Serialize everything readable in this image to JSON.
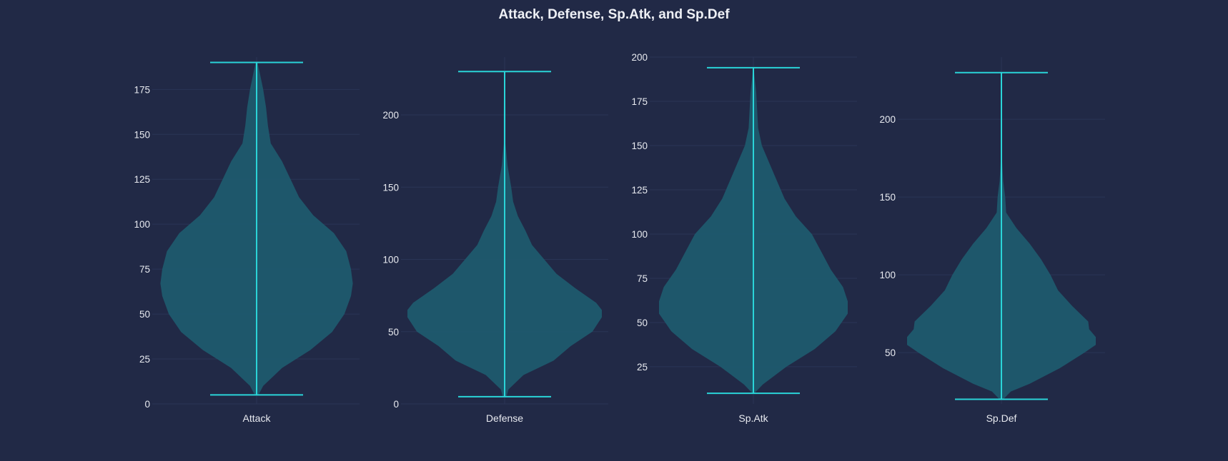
{
  "chart_data": {
    "type": "violin",
    "title": "Attack, Defense, Sp.Atk, and Sp.Def",
    "panels": [
      {
        "category": "Attack",
        "min": 5,
        "max": 190,
        "ylim": [
          0,
          193
        ],
        "yticks": [
          0,
          25,
          50,
          75,
          100,
          125,
          150,
          175
        ],
        "density": [
          [
            5,
            0.02
          ],
          [
            10,
            0.07
          ],
          [
            20,
            0.27
          ],
          [
            30,
            0.57
          ],
          [
            40,
            0.8
          ],
          [
            50,
            0.93
          ],
          [
            60,
            1.0
          ],
          [
            67,
            1.02
          ],
          [
            75,
            1.0
          ],
          [
            85,
            0.95
          ],
          [
            95,
            0.82
          ],
          [
            105,
            0.6
          ],
          [
            115,
            0.45
          ],
          [
            125,
            0.36
          ],
          [
            135,
            0.27
          ],
          [
            145,
            0.15
          ],
          [
            155,
            0.12
          ],
          [
            165,
            0.1
          ],
          [
            175,
            0.07
          ],
          [
            185,
            0.03
          ],
          [
            190,
            0.01
          ]
        ]
      },
      {
        "category": "Defense",
        "min": 5,
        "max": 230,
        "ylim": [
          0,
          240
        ],
        "yticks": [
          0,
          50,
          100,
          150,
          200
        ],
        "density": [
          [
            5,
            0.02
          ],
          [
            10,
            0.04
          ],
          [
            20,
            0.2
          ],
          [
            30,
            0.52
          ],
          [
            40,
            0.7
          ],
          [
            50,
            0.93
          ],
          [
            60,
            1.03
          ],
          [
            65,
            1.03
          ],
          [
            70,
            0.97
          ],
          [
            80,
            0.75
          ],
          [
            90,
            0.55
          ],
          [
            100,
            0.42
          ],
          [
            110,
            0.29
          ],
          [
            120,
            0.22
          ],
          [
            130,
            0.14
          ],
          [
            140,
            0.09
          ],
          [
            150,
            0.07
          ],
          [
            165,
            0.03
          ],
          [
            180,
            0.01
          ],
          [
            200,
            0.01
          ],
          [
            230,
            0.005
          ]
        ]
      },
      {
        "category": "Sp.Atk",
        "min": 10,
        "max": 194,
        "ylim": [
          4,
          200
        ],
        "yticks": [
          25,
          50,
          75,
          100,
          125,
          150,
          175,
          200
        ],
        "density": [
          [
            10,
            0.01
          ],
          [
            15,
            0.1
          ],
          [
            25,
            0.35
          ],
          [
            35,
            0.65
          ],
          [
            45,
            0.87
          ],
          [
            55,
            1.0
          ],
          [
            62,
            1.0
          ],
          [
            70,
            0.95
          ],
          [
            80,
            0.82
          ],
          [
            90,
            0.72
          ],
          [
            100,
            0.62
          ],
          [
            110,
            0.45
          ],
          [
            120,
            0.33
          ],
          [
            130,
            0.25
          ],
          [
            140,
            0.17
          ],
          [
            150,
            0.09
          ],
          [
            160,
            0.05
          ],
          [
            170,
            0.04
          ],
          [
            180,
            0.03
          ],
          [
            190,
            0.01
          ],
          [
            194,
            0.005
          ]
        ]
      },
      {
        "category": "Sp.Def",
        "min": 20,
        "max": 230,
        "ylim": [
          17,
          240
        ],
        "yticks": [
          50,
          100,
          150,
          200
        ],
        "density": [
          [
            20,
            0.02
          ],
          [
            25,
            0.1
          ],
          [
            30,
            0.3
          ],
          [
            40,
            0.62
          ],
          [
            50,
            0.88
          ],
          [
            55,
            1.0
          ],
          [
            60,
            1.0
          ],
          [
            65,
            0.93
          ],
          [
            70,
            0.92
          ],
          [
            80,
            0.75
          ],
          [
            90,
            0.6
          ],
          [
            100,
            0.52
          ],
          [
            110,
            0.42
          ],
          [
            120,
            0.3
          ],
          [
            130,
            0.16
          ],
          [
            140,
            0.05
          ],
          [
            150,
            0.04
          ],
          [
            160,
            0.02
          ],
          [
            170,
            0.01
          ],
          [
            180,
            0.003
          ],
          [
            230,
            0.002
          ]
        ]
      }
    ]
  },
  "colors": {
    "background": "#212946",
    "violin_fill": "#1f5a6e",
    "line": "#2ad4d8",
    "grid": "#2a3556",
    "text": "#e8eaf0"
  }
}
